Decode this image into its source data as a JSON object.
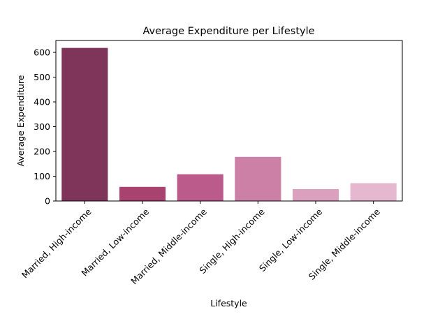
{
  "chart_data": {
    "type": "bar",
    "title": "Average Expenditure per Lifestyle",
    "xlabel": "Lifestyle",
    "ylabel": "Average Expenditure",
    "categories": [
      "Married, High-income",
      "Married, Low-income",
      "Married, Middle-income",
      "Single, High-income",
      "Single, Low-income",
      "Single, Middle-income"
    ],
    "values": [
      618,
      57,
      108,
      178,
      48,
      72
    ],
    "colors": [
      "#7f3459",
      "#a8436f",
      "#ba5b8b",
      "#cc80a5",
      "#dca0bf",
      "#e6b8cf"
    ],
    "yticks": [
      0,
      100,
      200,
      300,
      400,
      500,
      600
    ],
    "ylim": [
      0,
      648
    ],
    "grid": false,
    "legend": "none"
  }
}
